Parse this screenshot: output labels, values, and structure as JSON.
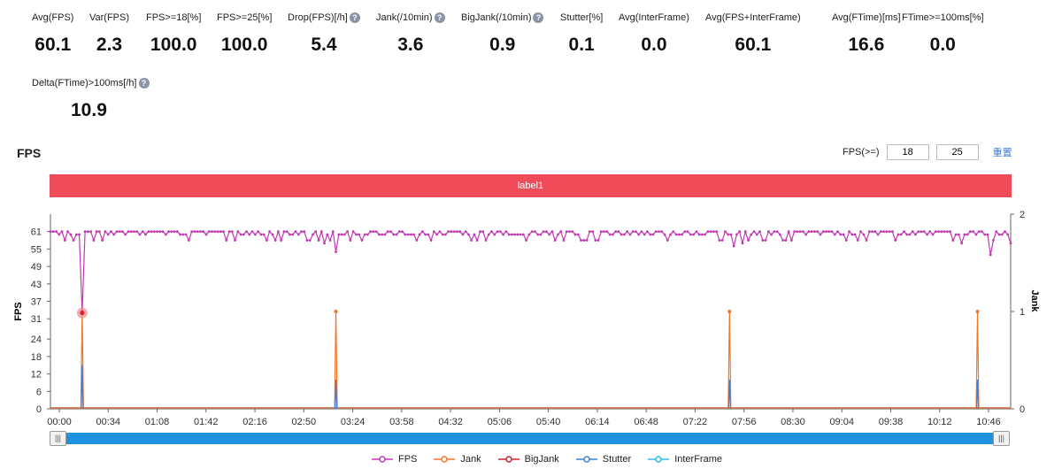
{
  "metrics": [
    {
      "label": "Avg(FPS)",
      "value": "60.1",
      "help": false
    },
    {
      "label": "Var(FPS)",
      "value": "2.3",
      "help": false
    },
    {
      "label": "FPS>=18[%]",
      "value": "100.0",
      "help": false
    },
    {
      "label": "FPS>=25[%]",
      "value": "100.0",
      "help": false
    },
    {
      "label": "Drop(FPS)[/h]",
      "value": "5.4",
      "help": true
    },
    {
      "label": "Jank(/10min)",
      "value": "3.6",
      "help": true
    },
    {
      "label": "BigJank(/10min)",
      "value": "0.9",
      "help": true
    },
    {
      "label": "Stutter[%]",
      "value": "0.1",
      "help": false
    },
    {
      "label": "Avg(InterFrame)",
      "value": "0.0",
      "help": false
    },
    {
      "label": "Avg(FPS+InterFrame)",
      "value": "60.1",
      "help": false
    },
    {
      "label": "Avg(FTime)[ms]",
      "value": "16.6",
      "help": false
    },
    {
      "label": "FTime>=100ms[%]",
      "value": "0.0",
      "help": false
    },
    {
      "label": "Delta(FTime)>100ms[/h]",
      "value": "10.9",
      "help": true
    }
  ],
  "chart_title": "FPS",
  "threshold": {
    "label": "FPS(>=)",
    "value1": "18",
    "value2": "25",
    "reset_label": "重置"
  },
  "label_bar": "label1",
  "help_glyph": "?",
  "scroll": {
    "left_glyph": "|||",
    "right_glyph": "|||"
  },
  "chart_data": {
    "type": "line",
    "title": "FPS",
    "ylabel": "FPS",
    "y2label": "Jank",
    "x_ticks": [
      "00:00",
      "00:34",
      "01:08",
      "01:42",
      "02:16",
      "02:50",
      "03:24",
      "03:58",
      "04:32",
      "05:06",
      "05:40",
      "06:14",
      "06:48",
      "07:22",
      "07:56",
      "08:30",
      "09:04",
      "09:38",
      "10:12",
      "10:46"
    ],
    "y_ticks": [
      0,
      6,
      12,
      18,
      24,
      31,
      37,
      43,
      49,
      55,
      61
    ],
    "y2_ticks": [
      0,
      1,
      2
    ],
    "ylim": [
      0,
      67
    ],
    "y2lim": [
      0,
      2
    ],
    "x_range_seconds": [
      0,
      666
    ],
    "fps_baseline": 60,
    "fps_dips": [
      {
        "t": 22,
        "v": 33
      },
      {
        "t": 198,
        "v": 54
      },
      {
        "t": 190,
        "v": 57
      },
      {
        "t": 389,
        "v": 56
      },
      {
        "t": 463,
        "v": 55
      },
      {
        "t": 474,
        "v": 56
      },
      {
        "t": 652,
        "v": 53
      },
      {
        "t": 666,
        "v": 57
      },
      {
        "t": 632,
        "v": 57
      },
      {
        "t": 615,
        "v": 58
      },
      {
        "t": 480,
        "v": 57
      },
      {
        "t": 350,
        "v": 58
      }
    ],
    "jank_spikes": [
      {
        "t": 22,
        "v": 1
      },
      {
        "t": 198,
        "v": 1
      },
      {
        "t": 471,
        "v": 1
      },
      {
        "t": 643,
        "v": 1
      }
    ],
    "stutter_spikes": [
      {
        "t": 22,
        "v": 0.45
      },
      {
        "t": 198,
        "v": 0.3
      },
      {
        "t": 471,
        "v": 0.3
      },
      {
        "t": 643,
        "v": 0.3
      }
    ],
    "highlight_point": {
      "t": 22,
      "v": 33
    },
    "series": [
      {
        "name": "FPS",
        "color": "#c23ab3"
      },
      {
        "name": "Jank",
        "color": "#f0762a"
      },
      {
        "name": "BigJank",
        "color": "#d82033"
      },
      {
        "name": "Stutter",
        "color": "#3d7fd8"
      },
      {
        "name": "InterFrame",
        "color": "#29c0e6"
      }
    ]
  }
}
